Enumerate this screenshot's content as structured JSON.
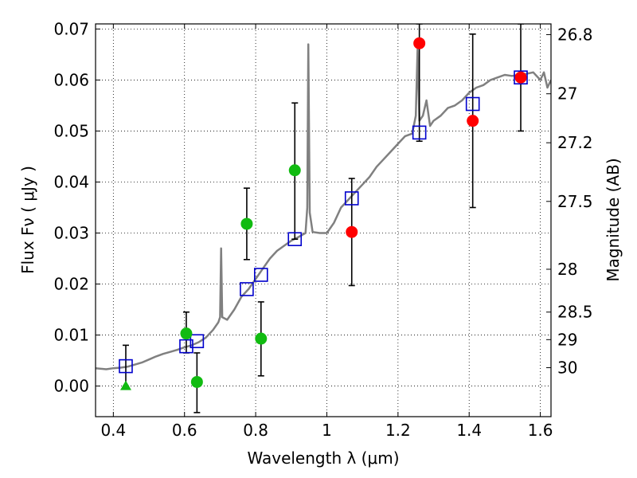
{
  "chart_data": {
    "type": "scatter",
    "xlabel": "Wavelength  λ (μm)",
    "ylabel": "Flux  Fν  ( μJy )",
    "y2label": "Magnitude (AB)",
    "xlim": [
      0.35,
      1.63
    ],
    "ylim": [
      -0.006,
      0.071
    ],
    "grid": true,
    "x_ticks": [
      0.4,
      0.6,
      0.8,
      1.0,
      1.2,
      1.4,
      1.6
    ],
    "x_tick_labels": [
      "0.4",
      "0.6",
      "0.8",
      "1",
      "1.2",
      "1.4",
      "1.6"
    ],
    "y_ticks": [
      0.0,
      0.01,
      0.02,
      0.03,
      0.04,
      0.05,
      0.06,
      0.07
    ],
    "y_tick_labels": [
      "0.00",
      "0.01",
      "0.02",
      "0.03",
      "0.04",
      "0.05",
      "0.06",
      "0.07"
    ],
    "y2_ticks": [
      {
        "label": "26.8",
        "flux": 0.0689
      },
      {
        "label": "27",
        "flux": 0.0573
      },
      {
        "label": "27.2",
        "flux": 0.0477
      },
      {
        "label": "27.5",
        "flux": 0.0362
      },
      {
        "label": "28",
        "flux": 0.0229
      },
      {
        "label": "28.5",
        "flux": 0.0145
      },
      {
        "label": "29",
        "flux": 0.0091
      },
      {
        "label": "30",
        "flux": 0.0036
      }
    ],
    "colors": {
      "model": "#808080",
      "model_photometry": "#0000cc",
      "detection": "#ff0000",
      "low_sn": "#11bb11",
      "error_bar": "#000000"
    },
    "series": [
      {
        "kind": "model_spectrum",
        "points": [
          [
            0.35,
            0.0035
          ],
          [
            0.38,
            0.0033
          ],
          [
            0.4,
            0.0035
          ],
          [
            0.42,
            0.0036
          ],
          [
            0.44,
            0.0038
          ],
          [
            0.46,
            0.0042
          ],
          [
            0.48,
            0.0046
          ],
          [
            0.5,
            0.0052
          ],
          [
            0.52,
            0.0058
          ],
          [
            0.54,
            0.0063
          ],
          [
            0.56,
            0.0067
          ],
          [
            0.58,
            0.0071
          ],
          [
            0.6,
            0.0076
          ],
          [
            0.62,
            0.008
          ],
          [
            0.64,
            0.0086
          ],
          [
            0.66,
            0.0095
          ],
          [
            0.68,
            0.011
          ],
          [
            0.695,
            0.0125
          ],
          [
            0.7,
            0.0135
          ],
          [
            0.703,
            0.027
          ],
          [
            0.706,
            0.0135
          ],
          [
            0.72,
            0.013
          ],
          [
            0.74,
            0.015
          ],
          [
            0.76,
            0.0175
          ],
          [
            0.78,
            0.019
          ],
          [
            0.8,
            0.021
          ],
          [
            0.82,
            0.023
          ],
          [
            0.84,
            0.025
          ],
          [
            0.86,
            0.0265
          ],
          [
            0.88,
            0.0275
          ],
          [
            0.9,
            0.0285
          ],
          [
            0.92,
            0.0292
          ],
          [
            0.94,
            0.03
          ],
          [
            0.945,
            0.035
          ],
          [
            0.948,
            0.067
          ],
          [
            0.952,
            0.034
          ],
          [
            0.96,
            0.0302
          ],
          [
            0.98,
            0.03
          ],
          [
            1.0,
            0.03
          ],
          [
            1.02,
            0.032
          ],
          [
            1.04,
            0.035
          ],
          [
            1.06,
            0.0365
          ],
          [
            1.08,
            0.038
          ],
          [
            1.1,
            0.0395
          ],
          [
            1.12,
            0.041
          ],
          [
            1.14,
            0.043
          ],
          [
            1.16,
            0.0445
          ],
          [
            1.18,
            0.046
          ],
          [
            1.2,
            0.0475
          ],
          [
            1.22,
            0.049
          ],
          [
            1.24,
            0.0495
          ],
          [
            1.25,
            0.053
          ],
          [
            1.255,
            0.066
          ],
          [
            1.26,
            0.052
          ],
          [
            1.27,
            0.053
          ],
          [
            1.28,
            0.056
          ],
          [
            1.29,
            0.051
          ],
          [
            1.3,
            0.052
          ],
          [
            1.32,
            0.053
          ],
          [
            1.34,
            0.0545
          ],
          [
            1.36,
            0.055
          ],
          [
            1.38,
            0.056
          ],
          [
            1.4,
            0.0575
          ],
          [
            1.42,
            0.0585
          ],
          [
            1.44,
            0.059
          ],
          [
            1.46,
            0.06
          ],
          [
            1.48,
            0.0605
          ],
          [
            1.5,
            0.061
          ],
          [
            1.52,
            0.0608
          ],
          [
            1.54,
            0.061
          ],
          [
            1.56,
            0.0612
          ],
          [
            1.58,
            0.0615
          ],
          [
            1.6,
            0.06
          ],
          [
            1.61,
            0.0615
          ],
          [
            1.62,
            0.0585
          ],
          [
            1.63,
            0.06
          ]
        ]
      },
      {
        "kind": "model_photometry",
        "points": [
          [
            0.435,
            0.0039
          ],
          [
            0.605,
            0.0078
          ],
          [
            0.635,
            0.0088
          ],
          [
            0.775,
            0.019
          ],
          [
            0.815,
            0.0218
          ],
          [
            0.91,
            0.0288
          ],
          [
            1.07,
            0.0368
          ],
          [
            1.26,
            0.0497
          ],
          [
            1.41,
            0.0553
          ],
          [
            1.545,
            0.0605
          ]
        ]
      },
      {
        "kind": "low_sn_flux",
        "points": [
          {
            "x": 0.605,
            "y": 0.0103,
            "lo": 0.0065,
            "hi": 0.0145
          },
          {
            "x": 0.635,
            "y": 0.0008,
            "lo": -0.0052,
            "hi": 0.0065
          },
          {
            "x": 0.775,
            "y": 0.0318,
            "lo": 0.0248,
            "hi": 0.0388
          },
          {
            "x": 0.815,
            "y": 0.0093,
            "lo": 0.002,
            "hi": 0.0165
          },
          {
            "x": 0.91,
            "y": 0.0423,
            "lo": 0.0288,
            "hi": 0.0555
          }
        ]
      },
      {
        "kind": "detected_flux",
        "points": [
          {
            "x": 1.07,
            "y": 0.0302,
            "lo": 0.0197,
            "hi": 0.0407
          },
          {
            "x": 1.26,
            "y": 0.0672,
            "lo": 0.048,
            "hi": 0.071
          },
          {
            "x": 1.41,
            "y": 0.052,
            "lo": 0.035,
            "hi": 0.069
          },
          {
            "x": 1.545,
            "y": 0.0605,
            "lo": 0.05,
            "hi": 0.071
          }
        ]
      },
      {
        "kind": "upper_limit",
        "points": [
          {
            "x": 0.435,
            "y": 0.0,
            "lo": 0.0,
            "hi": 0.008
          }
        ]
      }
    ]
  }
}
